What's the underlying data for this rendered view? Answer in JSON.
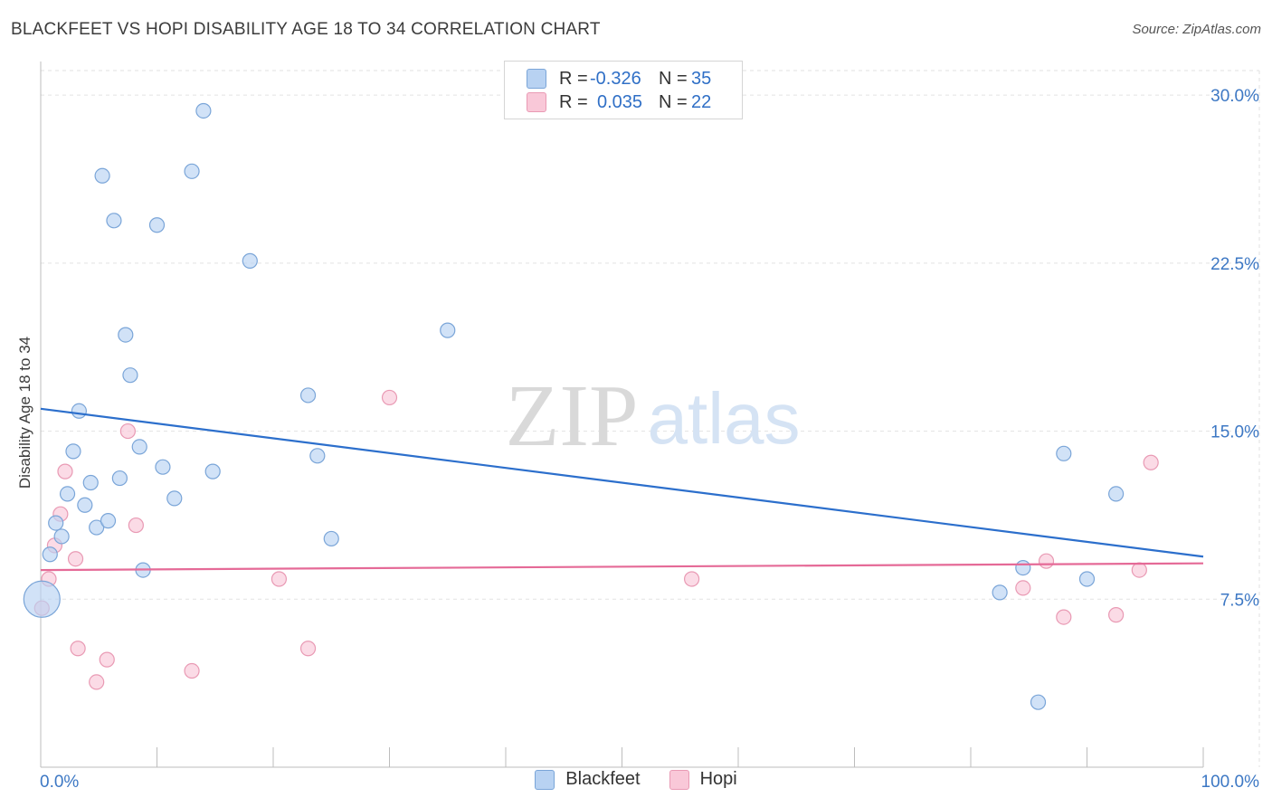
{
  "header": {
    "title": "BLACKFEET VS HOPI DISABILITY AGE 18 TO 34 CORRELATION CHART",
    "source": "Source: ZipAtlas.com"
  },
  "legend": {
    "series1": {
      "r_label": "R =",
      "r_value": "-0.326",
      "n_label": "N =",
      "n_value": "35"
    },
    "series2": {
      "r_label": "R =",
      "r_value": "0.035",
      "n_label": "N =",
      "n_value": "22"
    }
  },
  "watermark": {
    "zip": "ZIP",
    "atlas": "atlas"
  },
  "colors": {
    "blackfeet_fill": "#b8d2f2",
    "blackfeet_stroke": "#7aa5d8",
    "blackfeet_line": "#2c6fcc",
    "hopi_fill": "#f9c8d8",
    "hopi_stroke": "#e99ab4",
    "hopi_line": "#e56a97",
    "tick_text": "#3d78c4"
  },
  "chart_data": {
    "type": "scatter",
    "title": "BLACKFEET VS HOPI DISABILITY AGE 18 TO 34 CORRELATION CHART",
    "xlabel": "",
    "ylabel": "Disability Age 18 to 34",
    "xlim": [
      0,
      100
    ],
    "ylim": [
      0,
      31.5
    ],
    "x_tick_labels": [
      "0.0%",
      "100.0%"
    ],
    "y_ticks": [
      7.5,
      15.0,
      22.5,
      30.0
    ],
    "y_tick_labels": [
      "7.5%",
      "15.0%",
      "22.5%",
      "30.0%"
    ],
    "grid": true,
    "legend_position": "top-center",
    "series": [
      {
        "name": "Blackfeet",
        "points": [
          [
            0.1,
            7.5
          ],
          [
            0.8,
            9.5
          ],
          [
            1.3,
            10.9
          ],
          [
            1.8,
            10.3
          ],
          [
            2.3,
            12.2
          ],
          [
            2.8,
            14.1
          ],
          [
            3.3,
            15.9
          ],
          [
            3.8,
            11.7
          ],
          [
            4.3,
            12.7
          ],
          [
            4.8,
            10.7
          ],
          [
            5.3,
            26.4
          ],
          [
            5.8,
            11.0
          ],
          [
            6.3,
            24.4
          ],
          [
            6.8,
            12.9
          ],
          [
            7.3,
            19.3
          ],
          [
            7.7,
            17.5
          ],
          [
            8.5,
            14.3
          ],
          [
            8.8,
            8.8
          ],
          [
            10.0,
            24.2
          ],
          [
            10.5,
            13.4
          ],
          [
            11.5,
            12.0
          ],
          [
            13.0,
            26.6
          ],
          [
            14.0,
            29.3
          ],
          [
            14.8,
            13.2
          ],
          [
            18.0,
            22.6
          ],
          [
            23.0,
            16.6
          ],
          [
            23.8,
            13.9
          ],
          [
            25.0,
            10.2
          ],
          [
            35.0,
            19.5
          ],
          [
            82.5,
            7.8
          ],
          [
            84.5,
            8.9
          ],
          [
            85.8,
            2.9
          ],
          [
            88.0,
            14.0
          ],
          [
            90.0,
            8.4
          ],
          [
            92.5,
            12.2
          ]
        ]
      },
      {
        "name": "Hopi",
        "points": [
          [
            0.1,
            7.1
          ],
          [
            0.7,
            8.4
          ],
          [
            1.2,
            9.9
          ],
          [
            1.7,
            11.3
          ],
          [
            2.1,
            13.2
          ],
          [
            3.0,
            9.3
          ],
          [
            3.2,
            5.3
          ],
          [
            4.8,
            3.8
          ],
          [
            5.7,
            4.8
          ],
          [
            7.5,
            15.0
          ],
          [
            8.2,
            10.8
          ],
          [
            13.0,
            4.3
          ],
          [
            20.5,
            8.4
          ],
          [
            23.0,
            5.3
          ],
          [
            30.0,
            16.5
          ],
          [
            56.0,
            8.4
          ],
          [
            84.5,
            8.0
          ],
          [
            86.5,
            9.2
          ],
          [
            88.0,
            6.7
          ],
          [
            92.5,
            6.8
          ],
          [
            94.5,
            8.8
          ],
          [
            95.5,
            13.6
          ]
        ]
      }
    ],
    "trend_lines": [
      {
        "name": "Blackfeet",
        "start": [
          0,
          16.0
        ],
        "end": [
          100,
          9.4
        ]
      },
      {
        "name": "Hopi",
        "start": [
          0,
          8.8
        ],
        "end": [
          100,
          9.1
        ]
      }
    ]
  },
  "bottom_legend": {
    "blackfeet": "Blackfeet",
    "hopi": "Hopi"
  }
}
